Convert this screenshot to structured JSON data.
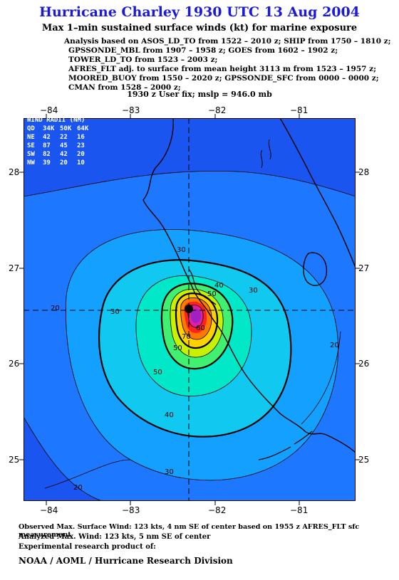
{
  "header": {
    "title": "Hurricane Charley 1930 UTC 13 Aug 2004",
    "subtitle": "Max 1–min sustained surface winds (kt) for marine exposure"
  },
  "analysis_lines": [
    "Analysis based on  ASOS_LD_TO from 1522 – 2010 z;  SHIP from 1750 – 1810 z;",
    "GPSSONDE_MBL from 1907 – 1958 z;  GOES from 1602 – 1902 z;",
    "TOWER_LD_TO from 1523 – 2003 z;",
    "AFRES_FLT adj. to surface from mean height 3113 m from 1523 – 1957 z;",
    "MOORED_BUOY from 1550 – 2020 z;  GPSSONDE_SFC from 0000 – 0000 z;",
    "CMAN from 1528 – 2000 z;"
  ],
  "userfix": "1930 z User fix; mslp = 946.0 mb",
  "wind_radii": {
    "title": "WIND RADII (NM)",
    "header": [
      "QD",
      "34K",
      "50K",
      "64K"
    ],
    "rows": [
      [
        "NE",
        "42",
        "22",
        "16"
      ],
      [
        "SE",
        "87",
        "45",
        "23"
      ],
      [
        "SW",
        "82",
        "42",
        "20"
      ],
      [
        "NW",
        "39",
        "20",
        "10"
      ]
    ]
  },
  "axes": {
    "x_top": [
      "−84",
      "−83",
      "−82",
      "−81"
    ],
    "x_bottom": [
      "−84",
      "−83",
      "−82",
      "−81"
    ],
    "y_left": [
      "28",
      "27",
      "26",
      "25"
    ],
    "y_right": [
      "28",
      "27",
      "26",
      "25"
    ]
  },
  "contour_labels": [
    "30",
    "20",
    "30",
    "30",
    "40",
    "50",
    "60",
    "70",
    "20",
    "50",
    "50",
    "40",
    "30",
    "20"
  ],
  "colors": {
    "title": "#1a1adc",
    "land": "#1a55f0",
    "c20": "#1e78ff",
    "c30": "#14a0ff",
    "c40": "#10c8f0",
    "c50": "#00e8c8",
    "c60": "#40f070",
    "c70": "#c8f000",
    "c80": "#ffd000",
    "c90": "#ff7800",
    "c100": "#ff2020",
    "c110": "#e020a0",
    "c120": "#a020c0"
  },
  "footer": {
    "observed": "Observed Max. Surface Wind: 123 kts, 4 nm SE of center based on 1955 z AFRES_FLT sfc measurement",
    "analyzed": "Analyzed Max. Wind: 123 kts, 5 nm SE of center",
    "experimental": "Experimental research product of:",
    "credit": "NOAA / AOML / Hurricane Research Division"
  }
}
